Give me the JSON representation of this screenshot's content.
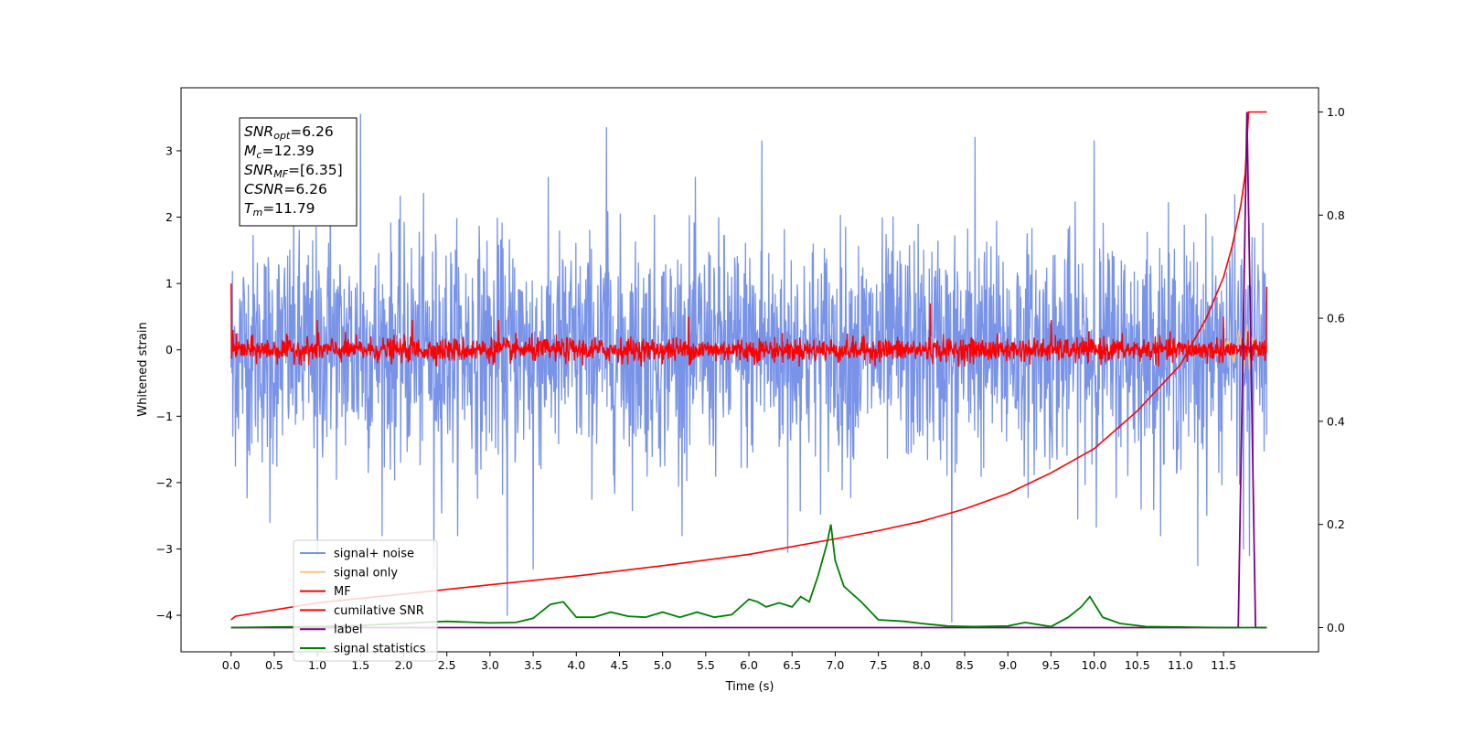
{
  "chart_data": {
    "type": "line",
    "xlabel": "Time (s)",
    "ylabel": "Whitened strain",
    "xlim": [
      -0.58,
      12.6
    ],
    "ylim": [
      -4.55,
      3.95
    ],
    "y2lim": [
      -0.047,
      1.047
    ],
    "x_ticks": [
      0.0,
      0.5,
      1.0,
      1.5,
      2.0,
      2.5,
      3.0,
      3.5,
      4.0,
      4.5,
      5.0,
      5.5,
      6.0,
      6.5,
      7.0,
      7.5,
      8.0,
      8.5,
      9.0,
      9.5,
      10.0,
      10.5,
      11.0,
      11.5
    ],
    "x_tick_labels": [
      "0.0",
      "0.5",
      "1.0",
      "1.5",
      "2.0",
      "2.5",
      "3.0",
      "3.5",
      "4.0",
      "4.5",
      "5.0",
      "5.5",
      "6.0",
      "6.5",
      "7.0",
      "7.5",
      "8.0",
      "8.5",
      "9.0",
      "9.5",
      "10.0",
      "10.5",
      "11.0",
      "11.5"
    ],
    "y_ticks": [
      -4,
      -3,
      -2,
      -1,
      0,
      1,
      2,
      3
    ],
    "y_tick_labels": [
      "−4",
      "−3",
      "−2",
      "−1",
      "0",
      "1",
      "2",
      "3"
    ],
    "y2_ticks": [
      0.0,
      0.2,
      0.4,
      0.6,
      0.8,
      1.0
    ],
    "y2_tick_labels": [
      "0.0",
      "0.2",
      "0.4",
      "0.6",
      "0.8",
      "1.0"
    ],
    "grid": false,
    "legend_position": "lower-left",
    "legend": [
      {
        "label": "signal+ noise",
        "color": "#7893e8"
      },
      {
        "label": "signal only",
        "color": "#f5c77e"
      },
      {
        "label": "MF",
        "color": "#ff0000"
      },
      {
        "label": "cumilative SNR",
        "color": "#ff0000"
      },
      {
        "label": "label",
        "color": "#800080"
      },
      {
        "label": "signal statistics",
        "color": "#008000"
      }
    ],
    "annotation": {
      "lines": [
        {
          "name": "SNR",
          "sub": "opt",
          "value": "=6.26"
        },
        {
          "name": "M",
          "sub": "c",
          "value": "=12.39"
        },
        {
          "name": "SNR",
          "sub": "MF",
          "value": "=[6.35]"
        },
        {
          "name": "CSNR",
          "sub": "",
          "value": "=6.26"
        },
        {
          "name": "T",
          "sub": "m",
          "value": "=11.79"
        }
      ]
    },
    "series": [
      {
        "name": "signal+ noise",
        "axis": "left",
        "color": "#7893e8",
        "description": "Whitened noisy strain, roughly within -2.7..2.5 with occasional spikes",
        "spikes": [
          [
            0.02,
            -1.3
          ],
          [
            0.45,
            -2.6
          ],
          [
            1.0,
            -3.1
          ],
          [
            1.15,
            3.1
          ],
          [
            1.5,
            3.55
          ],
          [
            2.35,
            -3.3
          ],
          [
            3.2,
            -4.0
          ],
          [
            3.5,
            -3.3
          ],
          [
            4.35,
            3.35
          ],
          [
            6.15,
            3.15
          ],
          [
            6.45,
            -3.05
          ],
          [
            8.35,
            -4.1
          ],
          [
            8.62,
            3.2
          ],
          [
            10.0,
            3.15
          ],
          [
            11.2,
            -3.25
          ],
          [
            11.73,
            -3.0
          ],
          [
            11.8,
            -3.1
          ]
        ]
      },
      {
        "name": "signal only",
        "axis": "left",
        "color": "#f5c77e",
        "description": "Chirp signal, visible only near merger",
        "points": [
          [
            11.35,
            0.05
          ],
          [
            11.45,
            -0.1
          ],
          [
            11.55,
            0.15
          ],
          [
            11.62,
            -0.2
          ],
          [
            11.68,
            0.3
          ],
          [
            11.73,
            -0.35
          ],
          [
            11.77,
            0.38
          ],
          [
            11.8,
            -0.3
          ],
          [
            11.84,
            0.2
          ],
          [
            11.9,
            -0.1
          ]
        ]
      },
      {
        "name": "MF",
        "axis": "left",
        "color": "#ff0000",
        "description": "Matched filter output, noise within about -0.25..0.25",
        "spikes": [
          [
            0.0,
            1.0
          ],
          [
            0.02,
            0.3
          ],
          [
            1.0,
            0.45
          ],
          [
            2.1,
            0.45
          ],
          [
            3.1,
            0.45
          ],
          [
            5.3,
            0.5
          ],
          [
            8.1,
            0.7
          ],
          [
            9.5,
            0.45
          ],
          [
            11.5,
            0.5
          ],
          [
            12.0,
            0.95
          ]
        ]
      },
      {
        "name": "cumilative SNR",
        "axis": "right",
        "color": "#ff0000",
        "x": [
          0.0,
          0.05,
          1.0,
          2.0,
          3.0,
          4.0,
          5.0,
          6.0,
          7.0,
          7.5,
          8.0,
          8.5,
          9.0,
          9.5,
          10.0,
          10.5,
          11.0,
          11.3,
          11.5,
          11.6,
          11.7,
          11.75,
          11.79,
          11.83,
          12.0
        ],
        "y": [
          0.015,
          0.022,
          0.048,
          0.065,
          0.083,
          0.1,
          0.12,
          0.142,
          0.172,
          0.188,
          0.206,
          0.23,
          0.26,
          0.3,
          0.347,
          0.42,
          0.51,
          0.6,
          0.68,
          0.74,
          0.82,
          0.88,
          1.0,
          1.0,
          1.0
        ]
      },
      {
        "name": "label",
        "axis": "right",
        "color": "#800080",
        "x": [
          0.0,
          11.67,
          11.77,
          11.87,
          12.0
        ],
        "y": [
          0.0,
          0.0,
          1.0,
          0.0,
          0.0
        ]
      },
      {
        "name": "signal statistics",
        "axis": "right",
        "color": "#008000",
        "x": [
          0.0,
          0.5,
          1.0,
          1.5,
          2.0,
          2.2,
          2.5,
          3.0,
          3.3,
          3.5,
          3.7,
          3.85,
          4.0,
          4.2,
          4.4,
          4.6,
          4.8,
          5.0,
          5.2,
          5.4,
          5.6,
          5.8,
          6.0,
          6.1,
          6.2,
          6.35,
          6.5,
          6.6,
          6.7,
          6.8,
          6.9,
          6.95,
          7.0,
          7.1,
          7.3,
          7.5,
          7.8,
          8.0,
          8.3,
          8.6,
          9.0,
          9.2,
          9.5,
          9.7,
          9.85,
          9.95,
          10.1,
          10.3,
          10.6,
          11.0,
          11.5,
          12.0
        ],
        "y": [
          0.0,
          0.001,
          0.002,
          0.004,
          0.008,
          0.01,
          0.012,
          0.009,
          0.01,
          0.018,
          0.045,
          0.05,
          0.02,
          0.02,
          0.03,
          0.022,
          0.02,
          0.03,
          0.02,
          0.03,
          0.02,
          0.025,
          0.055,
          0.05,
          0.04,
          0.048,
          0.04,
          0.06,
          0.05,
          0.1,
          0.16,
          0.2,
          0.13,
          0.08,
          0.05,
          0.015,
          0.012,
          0.008,
          0.003,
          0.002,
          0.003,
          0.01,
          0.002,
          0.02,
          0.04,
          0.06,
          0.02,
          0.008,
          0.002,
          0.001,
          0.0,
          0.0
        ]
      }
    ]
  }
}
